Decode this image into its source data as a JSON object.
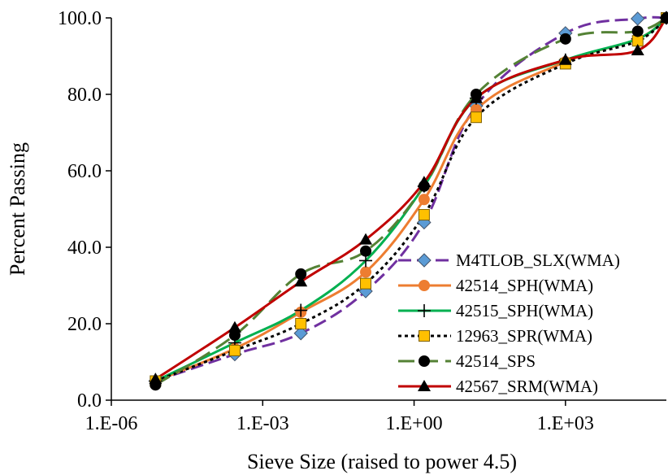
{
  "chart_data": {
    "type": "line",
    "xlabel": "Sieve Size (raised to power 4.5)",
    "ylabel": "Percent Passing",
    "x_scale": "log",
    "xlim": [
      1e-06,
      100000.0
    ],
    "ylim": [
      0,
      100
    ],
    "x_ticks": [
      {
        "value": 1e-06,
        "label": "1.E-06"
      },
      {
        "value": 0.001,
        "label": "1.E-03"
      },
      {
        "value": 1,
        "label": "1.E+00"
      },
      {
        "value": 1000.0,
        "label": "1.E+03"
      }
    ],
    "y_ticks": [
      {
        "value": 0,
        "label": "0.0"
      },
      {
        "value": 20,
        "label": "20.0"
      },
      {
        "value": 40,
        "label": "40.0"
      },
      {
        "value": 60,
        "label": "60.0"
      },
      {
        "value": 80,
        "label": "80.0"
      },
      {
        "value": 100,
        "label": "100.0"
      }
    ],
    "grid": false,
    "legend_position": "bottom-right",
    "x": [
      7.5e-06,
      0.00028,
      0.0057,
      0.11,
      1.58,
      17.0,
      1000,
      27000,
      100000
    ],
    "series": [
      {
        "name": "M4TLOB_SLX(WMA)",
        "color": "#7030A0",
        "marker": "diamond",
        "marker_color": "#5B9BD5",
        "dash": "dash",
        "values": [
          5.0,
          12.0,
          17.5,
          28.5,
          46.5,
          77.0,
          96.0,
          99.8,
          100.0
        ]
      },
      {
        "name": "42514_SPH(WMA)",
        "color": "#ED7D31",
        "marker": "circle",
        "marker_color": "#ED7D31",
        "dash": "solid",
        "values": [
          5.0,
          13.5,
          23.0,
          33.5,
          52.5,
          76.0,
          88.5,
          94.5,
          100.0
        ]
      },
      {
        "name": "42515_SPH(WMA)",
        "color": "#00B050",
        "marker": "plus",
        "marker_color": "#000000",
        "dash": "solid",
        "values": [
          5.0,
          15.0,
          23.5,
          36.5,
          56.0,
          79.0,
          89.0,
          94.5,
          100.0
        ]
      },
      {
        "name": "12963_SPR(WMA)",
        "color": "#000000",
        "marker": "square",
        "marker_color": "#FFC000",
        "dash": "dot",
        "values": [
          5.0,
          13.0,
          20.0,
          30.5,
          48.5,
          74.0,
          88.0,
          94.0,
          100.0
        ]
      },
      {
        "name": "42514_SPS",
        "color": "#548235",
        "marker": "circle",
        "marker_color": "#000000",
        "dash": "longdash",
        "values": [
          4.0,
          17.0,
          33.0,
          39.0,
          56.0,
          80.0,
          94.5,
          96.5,
          100.0
        ]
      },
      {
        "name": "42567_SRM(WMA)",
        "color": "#C00000",
        "marker": "triangle",
        "marker_color": "#000000",
        "dash": "solid",
        "values": [
          5.5,
          19.0,
          31.0,
          42.0,
          57.0,
          79.0,
          89.0,
          91.5,
          100.0
        ]
      }
    ]
  }
}
